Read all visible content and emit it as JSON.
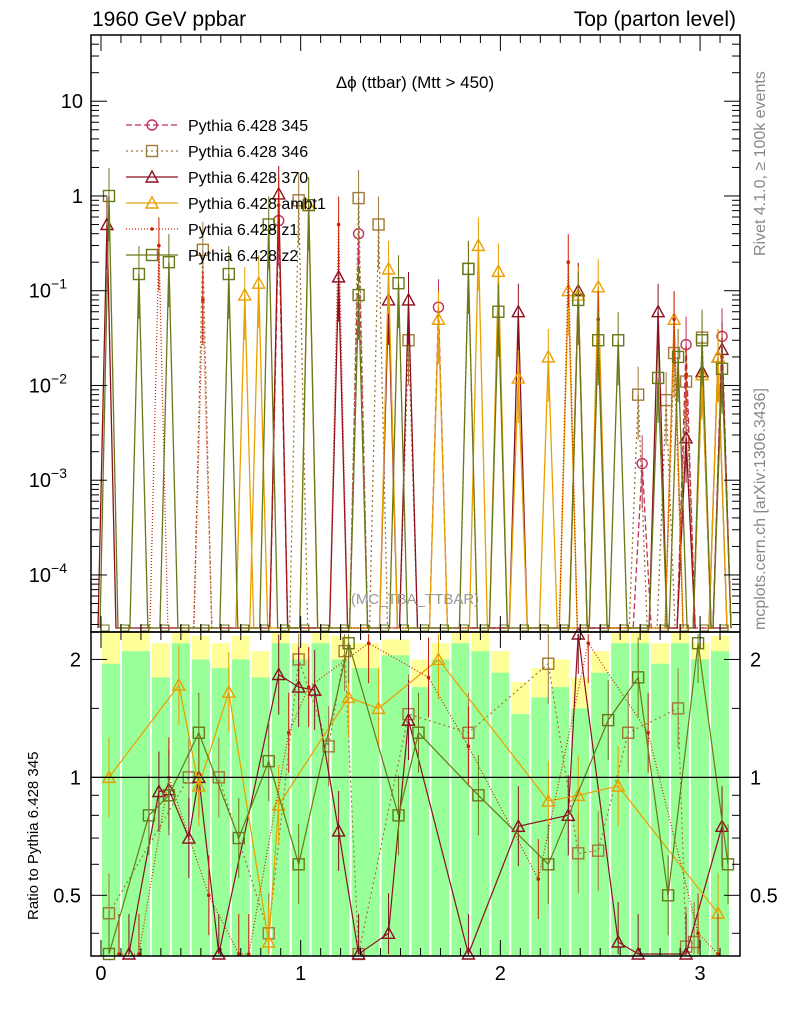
{
  "header": {
    "left": "1960 GeV ppbar",
    "right": "Top (parton level)"
  },
  "side_labels": {
    "rivet": "Rivet 4.1.0, ≥ 100k events",
    "mcplots": "mcplots.cern.ch [arXiv:1306.3436]"
  },
  "chart_data": {
    "type": "line",
    "title": "Δϕ (ttbar) (Mtt > 450)",
    "watermark": "(MC_TBA_TTBAR)",
    "xlabel": "",
    "ylabel": "",
    "xlim": [
      -0.05,
      3.2
    ],
    "ylim": [
      2.5e-05,
      50
    ],
    "yscale": "log",
    "x_ticks": [
      0,
      1,
      2,
      3
    ],
    "y_tick_labels": [
      "10",
      "1",
      "10^-1",
      "10^-2",
      "10^-3",
      "10^-4"
    ],
    "legend_position": "top-left",
    "series": [
      {
        "name": "Pythia 6.428 345",
        "color": "#c0305a",
        "dash": "6,3",
        "marker": "circle",
        "x": [
          0.89,
          1.29,
          1.69,
          2.71,
          2.93,
          3.11
        ],
        "y": [
          0.55,
          0.4,
          0.067,
          0.0015,
          0.027,
          0.033
        ]
      },
      {
        "name": "Pythia 6.428 346",
        "color": "#a07838",
        "dash": "2,3",
        "marker": "square",
        "x": [
          0.51,
          0.99,
          1.29,
          1.39,
          1.54,
          1.84,
          2.69,
          2.83,
          2.87,
          2.93,
          3.01
        ],
        "y": [
          0.27,
          0.9,
          0.95,
          0.5,
          0.03,
          0.17,
          0.008,
          0.007,
          0.022,
          0.011,
          0.032
        ]
      },
      {
        "name": "Pythia 6.428 370",
        "color": "#8b1020",
        "dash": "",
        "marker": "triangle",
        "x": [
          0.03,
          0.89,
          1.19,
          1.44,
          1.54,
          2.09,
          2.39,
          2.79,
          2.93,
          3.01,
          3.09,
          3.11
        ],
        "y": [
          0.5,
          1.05,
          0.14,
          0.08,
          0.08,
          0.06,
          0.1,
          0.06,
          0.0028,
          0.014,
          0.02,
          0.024
        ]
      },
      {
        "name": "Pythia 6.428 ambt1",
        "color": "#e8a000",
        "dash": "",
        "marker": "triangle-open",
        "x": [
          0.72,
          0.79,
          1.04,
          1.44,
          1.69,
          1.89,
          1.99,
          2.09,
          2.24,
          2.34,
          2.39,
          2.49,
          2.87,
          3.01,
          3.09
        ],
        "y": [
          0.09,
          0.12,
          0.8,
          0.17,
          0.05,
          0.3,
          0.16,
          0.012,
          0.02,
          0.1,
          0.09,
          0.11,
          0.05,
          0.013,
          0.02
        ]
      },
      {
        "name": "Pythia 6.428 z1",
        "color": "#cc2200",
        "dash": "1,2",
        "marker": "dot",
        "x": [
          0.29,
          0.51,
          0.89,
          1.19,
          2.34,
          2.49,
          2.87,
          2.93,
          3.11
        ],
        "y": [
          0.3,
          0.08,
          0.8,
          0.5,
          0.2,
          0.05,
          0.05,
          0.013,
          0.02
        ]
      },
      {
        "name": "Pythia 6.428 z2",
        "color": "#6a7818",
        "dash": "",
        "marker": "square-open",
        "x": [
          0.04,
          0.19,
          0.34,
          0.64,
          0.84,
          1.04,
          1.29,
          1.49,
          1.84,
          1.99,
          2.39,
          2.49,
          2.59,
          2.79,
          2.89,
          3.01,
          3.11
        ],
        "y": [
          1.0,
          0.15,
          0.2,
          0.15,
          0.5,
          0.8,
          0.09,
          0.12,
          0.17,
          0.06,
          0.08,
          0.03,
          0.03,
          0.012,
          0.02,
          0.03,
          0.015
        ]
      }
    ],
    "ratio": {
      "ylabel": "Ratio to Pythia 6.428 345",
      "ylim": [
        0.35,
        2.35
      ],
      "y_ticks": [
        0.5,
        1,
        2
      ],
      "reference_line": 1,
      "band_columns": [
        0.0,
        0.1,
        0.25,
        0.35,
        0.45,
        0.55,
        0.65,
        0.75,
        0.85,
        0.95,
        1.05,
        1.15,
        1.25,
        1.4,
        1.55,
        1.65,
        1.75,
        1.85,
        1.95,
        2.05,
        2.15,
        2.25,
        2.35,
        2.45,
        2.55,
        2.65,
        2.75,
        2.85,
        2.95,
        3.05,
        3.15
      ],
      "yellow_band": [
        [
          0.35,
          2.35
        ],
        [
          0.35,
          2.35
        ],
        [
          0.35,
          2.2
        ],
        [
          0.35,
          2.35
        ],
        [
          0.35,
          2.3
        ],
        [
          0.35,
          2.2
        ],
        [
          0.35,
          2.3
        ],
        [
          0.35,
          2.1
        ],
        [
          0.35,
          2.35
        ],
        [
          0.35,
          2.2
        ],
        [
          0.35,
          2.35
        ],
        [
          0.35,
          2.3
        ],
        [
          0.35,
          2.2
        ],
        [
          0.35,
          2.25
        ],
        [
          0.35,
          2.0
        ],
        [
          0.35,
          2.2
        ],
        [
          0.35,
          2.35
        ],
        [
          0.35,
          2.35
        ],
        [
          0.35,
          2.1
        ],
        [
          0.35,
          1.75
        ],
        [
          0.35,
          1.9
        ],
        [
          0.35,
          2.0
        ],
        [
          0.35,
          1.8
        ],
        [
          0.35,
          2.1
        ],
        [
          0.35,
          2.35
        ],
        [
          0.35,
          2.35
        ],
        [
          0.35,
          2.2
        ],
        [
          0.35,
          2.35
        ],
        [
          0.35,
          2.2
        ],
        [
          0.35,
          2.3
        ]
      ],
      "green_band": [
        [
          0.35,
          1.95
        ],
        [
          0.35,
          2.1
        ],
        [
          0.35,
          1.8
        ],
        [
          0.35,
          2.2
        ],
        [
          0.35,
          2.0
        ],
        [
          0.35,
          1.9
        ],
        [
          0.35,
          2.0
        ],
        [
          0.35,
          1.8
        ],
        [
          0.35,
          2.2
        ],
        [
          0.35,
          2.0
        ],
        [
          0.35,
          2.2
        ],
        [
          0.35,
          2.0
        ],
        [
          0.35,
          1.9
        ],
        [
          0.35,
          2.05
        ],
        [
          0.35,
          1.7
        ],
        [
          0.35,
          2.0
        ],
        [
          0.35,
          2.2
        ],
        [
          0.35,
          2.1
        ],
        [
          0.35,
          1.85
        ],
        [
          0.35,
          1.45
        ],
        [
          0.35,
          1.6
        ],
        [
          0.35,
          1.7
        ],
        [
          0.35,
          1.5
        ],
        [
          0.35,
          1.85
        ],
        [
          0.35,
          2.2
        ],
        [
          0.35,
          2.2
        ],
        [
          0.35,
          1.95
        ],
        [
          0.35,
          2.2
        ],
        [
          0.35,
          2.0
        ],
        [
          0.35,
          2.1
        ]
      ],
      "series": [
        {
          "name": "Pythia 6.428 346",
          "x": [
            0.04,
            0.44,
            0.59,
            0.84,
            0.99,
            1.14,
            1.22,
            1.29,
            1.54,
            1.84,
            2.24,
            2.39,
            2.49,
            2.64,
            2.89,
            2.93,
            2.97
          ],
          "y": [
            0.45,
            1.0,
            1.0,
            0.4,
            2.0,
            1.2,
            2.1,
            0.33,
            1.45,
            1.3,
            1.95,
            0.64,
            0.65,
            1.3,
            1.5,
            0.37,
            0.38
          ]
        },
        {
          "name": "Pythia 6.428 370",
          "x": [
            0.14,
            0.29,
            0.34,
            0.44,
            0.49,
            0.59,
            0.89,
            0.99,
            1.07,
            1.19,
            1.29,
            1.44,
            1.54,
            1.84,
            2.09,
            2.34,
            2.39,
            2.59,
            2.69,
            2.93,
            3.11
          ],
          "y": [
            0.3,
            0.92,
            0.93,
            0.7,
            1.0,
            0.35,
            1.83,
            1.7,
            1.67,
            0.73,
            0.3,
            0.4,
            1.4,
            0.25,
            0.75,
            0.8,
            2.33,
            0.38,
            0.3,
            0.3,
            0.75
          ]
        },
        {
          "name": "Pythia 6.428 ambt1",
          "x": [
            0.04,
            0.39,
            0.49,
            0.64,
            0.84,
            0.89,
            1.24,
            1.39,
            1.69,
            2.24,
            2.39,
            2.59,
            3.09
          ],
          "y": [
            1.0,
            1.72,
            0.95,
            1.65,
            0.38,
            0.85,
            1.6,
            1.5,
            2.0,
            0.87,
            0.9,
            0.95,
            0.45
          ]
        },
        {
          "name": "Pythia 6.428 z1",
          "x": [
            0.09,
            0.19,
            0.34,
            0.54,
            0.69,
            0.74,
            0.94,
            1.04,
            1.34,
            1.64,
            1.84,
            2.19,
            2.44,
            2.74,
            2.99,
            3.09
          ],
          "y": [
            0.3,
            0.3,
            1.0,
            0.5,
            0.3,
            0.3,
            1.3,
            1.7,
            2.2,
            1.8,
            1.2,
            0.55,
            2.2,
            1.3,
            0.4,
            0.3
          ]
        },
        {
          "name": "Pythia 6.428 z2",
          "x": [
            0.04,
            0.24,
            0.34,
            0.49,
            0.69,
            0.84,
            0.99,
            1.24,
            1.49,
            1.59,
            1.89,
            2.24,
            2.54,
            2.69,
            2.84,
            2.99,
            3.14
          ],
          "y": [
            0.3,
            0.8,
            0.9,
            1.3,
            0.7,
            1.1,
            0.6,
            2.2,
            0.8,
            1.3,
            0.9,
            0.6,
            1.4,
            1.8,
            0.5,
            2.2,
            0.6
          ]
        }
      ]
    }
  }
}
